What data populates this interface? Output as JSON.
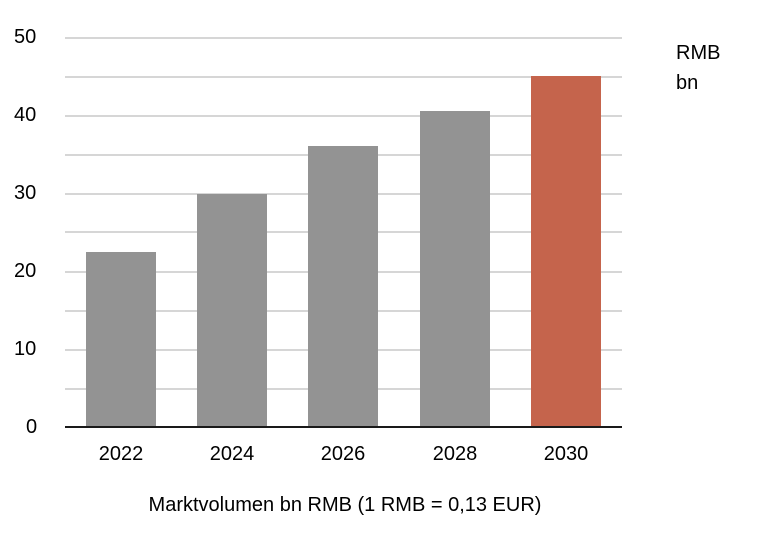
{
  "chart_data": {
    "type": "bar",
    "title": "",
    "categories": [
      "2022",
      "2024",
      "2026",
      "2028",
      "2030"
    ],
    "values": [
      22.4,
      29.9,
      36.0,
      40.5,
      45.0
    ],
    "xlabel": "Marktvolumen bn RMB (1 RMB = 0,13 EUR)",
    "ylabel": "RMB bn",
    "ylim": [
      0,
      50
    ],
    "yticks": [
      "0",
      "10",
      "20",
      "30",
      "40",
      "50"
    ],
    "grid": true,
    "grid_step": 5,
    "colors": [
      "#939393",
      "#939393",
      "#939393",
      "#939393",
      "#c5644c"
    ],
    "highlight_color": "#c5644c",
    "base_color": "#939393"
  },
  "labels": {
    "unit_line1": "RMB",
    "unit_line2": "bn",
    "xlabel": "Marktvolumen bn RMB (1 RMB = 0,13 EUR)",
    "yticks": [
      "50",
      "40",
      "30",
      "20",
      "10",
      "0"
    ],
    "xticks": [
      "2022",
      "2024",
      "2026",
      "2028",
      "2030"
    ]
  }
}
